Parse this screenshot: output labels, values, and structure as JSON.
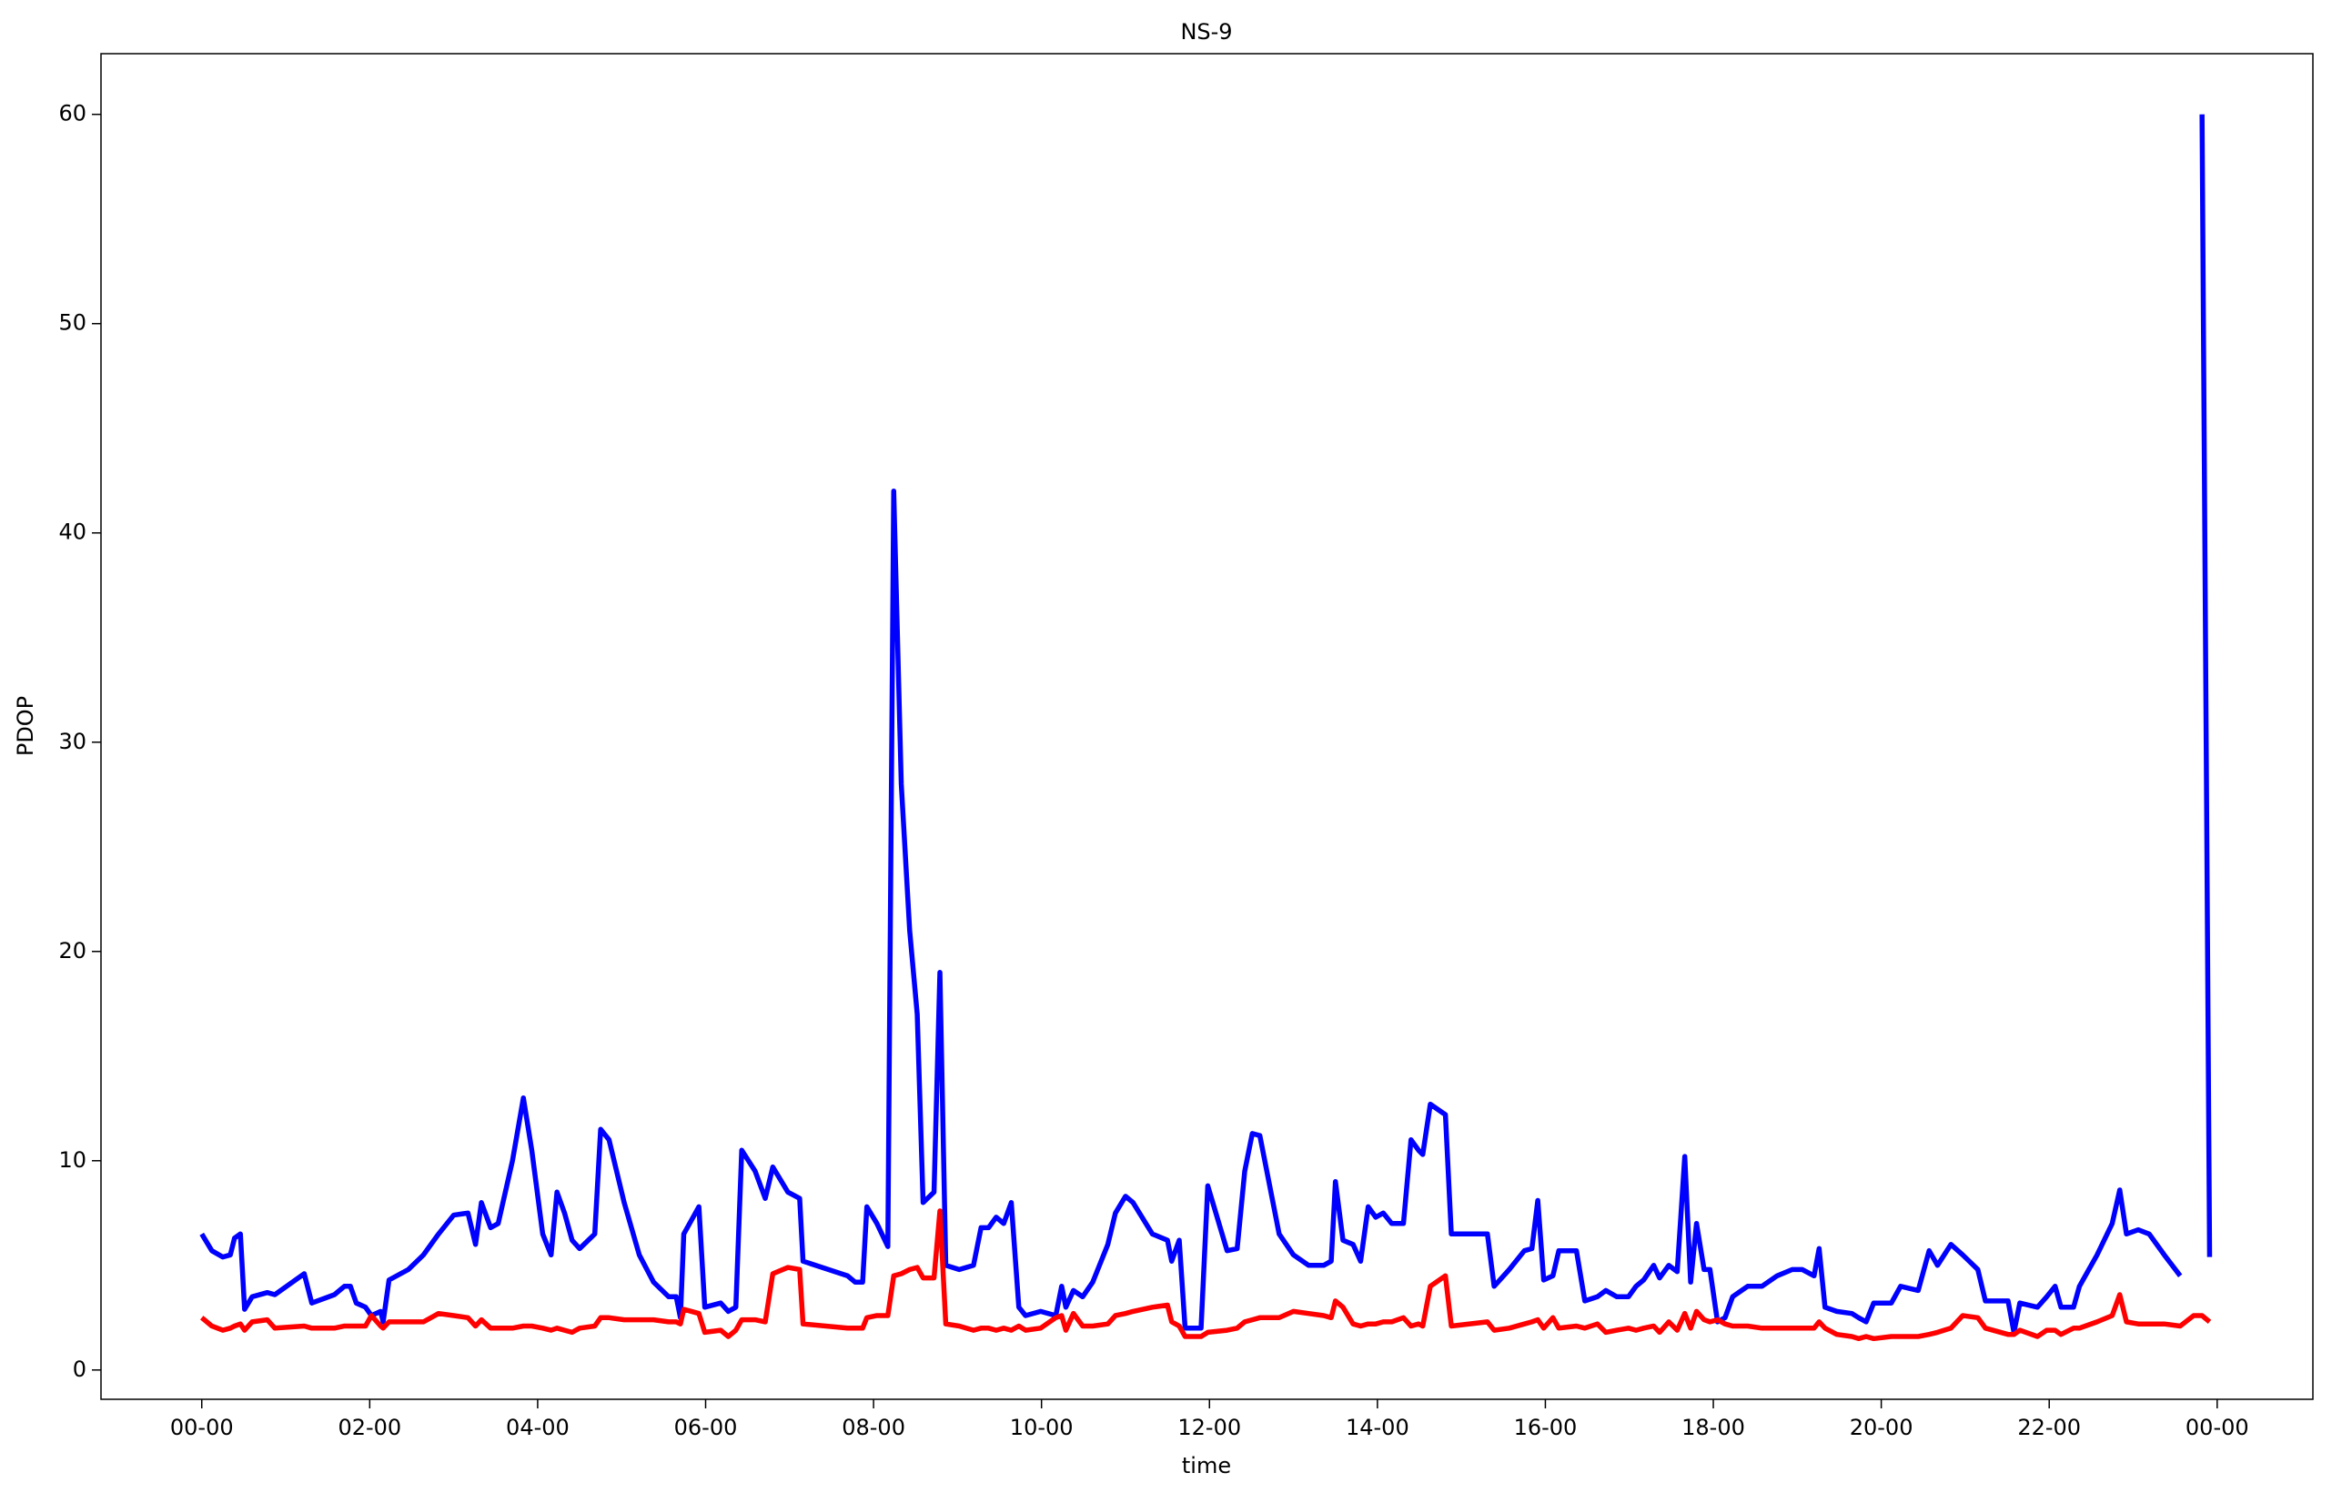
{
  "chart_data": {
    "type": "line",
    "title": "NS-9",
    "x_label": "time",
    "y_label": "PDOP",
    "x": [
      0,
      0.12,
      0.25,
      0.34,
      0.39,
      0.46,
      0.51,
      0.6,
      0.78,
      0.87,
      1.22,
      1.31,
      1.58,
      1.7,
      1.77,
      1.84,
      1.95,
      2.02,
      2.13,
      2.16,
      2.23,
      2.46,
      2.64,
      2.82,
      3.0,
      3.17,
      3.26,
      3.33,
      3.44,
      3.53,
      3.7,
      3.83,
      3.93,
      4.06,
      4.16,
      4.23,
      4.32,
      4.41,
      4.5,
      4.68,
      4.75,
      4.85,
      5.03,
      5.21,
      5.38,
      5.56,
      5.65,
      5.7,
      5.74,
      5.92,
      5.99,
      6.18,
      6.27,
      6.36,
      6.43,
      6.59,
      6.71,
      6.8,
      6.98,
      7.12,
      7.16,
      7.69,
      7.78,
      7.87,
      7.92,
      8.04,
      8.17,
      8.24,
      8.33,
      8.43,
      8.52,
      8.59,
      8.72,
      8.79,
      8.86,
      9.02,
      9.19,
      9.28,
      9.37,
      9.46,
      9.55,
      9.64,
      9.73,
      9.81,
      9.99,
      10.17,
      10.24,
      10.29,
      10.38,
      10.49,
      10.61,
      10.79,
      10.88,
      11.0,
      11.09,
      11.32,
      11.5,
      11.55,
      11.64,
      11.71,
      11.9,
      11.98,
      12.21,
      12.33,
      12.42,
      12.51,
      12.6,
      12.83,
      13.0,
      13.18,
      13.36,
      13.45,
      13.5,
      13.59,
      13.71,
      13.8,
      13.89,
      13.98,
      14.07,
      14.17,
      14.31,
      14.4,
      14.49,
      14.54,
      14.63,
      14.81,
      14.88,
      15.31,
      15.39,
      15.57,
      15.75,
      15.84,
      15.91,
      15.98,
      16.09,
      16.16,
      16.37,
      16.47,
      16.62,
      16.72,
      16.85,
      16.99,
      17.08,
      17.17,
      17.29,
      17.36,
      17.47,
      17.57,
      17.66,
      17.73,
      17.8,
      17.89,
      17.96,
      18.05,
      18.14,
      18.23,
      18.41,
      18.58,
      18.76,
      18.94,
      19.06,
      19.2,
      19.26,
      19.33,
      19.47,
      19.65,
      19.73,
      19.82,
      19.91,
      20.12,
      20.23,
      20.44,
      20.57,
      20.67,
      20.83,
      20.97,
      21.15,
      21.24,
      21.51,
      21.58,
      21.65,
      21.86,
      21.97,
      22.07,
      22.14,
      22.29,
      22.36,
      22.57,
      22.75,
      22.84,
      22.92,
      23.06,
      23.19,
      23.37,
      23.56,
      23.72,
      23.82,
      23.91
    ],
    "series": [
      {
        "color": "#0000ff",
        "values": [
          6.5,
          5.7,
          5.4,
          5.5,
          6.3,
          6.5,
          2.9,
          3.5,
          3.7,
          3.6,
          4.6,
          3.2,
          3.6,
          4.0,
          4.0,
          3.2,
          3.0,
          2.6,
          2.8,
          2.3,
          4.3,
          4.8,
          5.5,
          6.5,
          7.4,
          7.5,
          6.0,
          8.0,
          6.8,
          7.0,
          10,
          13,
          10.5,
          6.5,
          5.5,
          8.5,
          7.5,
          6.2,
          5.8,
          6.5,
          11.5,
          11,
          8,
          5.5,
          4.2,
          3.5,
          3.5,
          2.5,
          6.5,
          7.8,
          3.0,
          3.2,
          2.8,
          3.0,
          10.5,
          9.5,
          8.2,
          9.7,
          8.5,
          8.2,
          5.2,
          4.5,
          4.2,
          4.2,
          7.8,
          7.0,
          5.9,
          42,
          28,
          21,
          17,
          8,
          8.5,
          19,
          5,
          4.8,
          5.0,
          6.8,
          6.8,
          7.3,
          7.0,
          8.0,
          3.0,
          2.6,
          2.8,
          2.6,
          4.0,
          3.0,
          3.8,
          3.5,
          4.2,
          6,
          7.5,
          8.3,
          8.0,
          6.5,
          6.2,
          5.2,
          6.2,
          2.0,
          2.0,
          8.8,
          5.7,
          5.8,
          9.5,
          11.3,
          11.2,
          6.5,
          5.5,
          5.0,
          5.0,
          5.2,
          9.0,
          6.2,
          6.0,
          5.2,
          7.8,
          7.3,
          7.5,
          7.0,
          7.0,
          11,
          10.5,
          10.3,
          12.7,
          12.2,
          6.5,
          6.5,
          4.0,
          4.8,
          5.7,
          5.8,
          8.1,
          4.3,
          4.5,
          5.7,
          5.7,
          3.3,
          3.5,
          3.8,
          3.5,
          3.5,
          4.0,
          4.3,
          5.0,
          4.4,
          5.0,
          4.7,
          10.2,
          4.2,
          7.0,
          4.8,
          4.8,
          2.3,
          2.5,
          3.5,
          4.0,
          4.0,
          4.5,
          4.8,
          4.8,
          4.5,
          5.8,
          3.0,
          2.8,
          2.7,
          2.5,
          2.3,
          3.2,
          3.2,
          4.0,
          3.8,
          5.7,
          5.0,
          6.0,
          5.5,
          4.8,
          3.3,
          3.3,
          1.8,
          3.2,
          3.0,
          3.5,
          4.0,
          3.0,
          3.0,
          4.0,
          5.5,
          7.0,
          8.6,
          6.5,
          6.7,
          6.5,
          5.5,
          4.5,
          null,
          60,
          5.4
        ]
      },
      {
        "color": "#ff0000",
        "values": [
          2.5,
          2.1,
          1.9,
          2.0,
          2.1,
          2.2,
          1.9,
          2.3,
          2.4,
          2.0,
          2.1,
          2.0,
          2.0,
          2.1,
          2.1,
          2.1,
          2.1,
          2.6,
          2.1,
          2.0,
          2.3,
          2.3,
          2.3,
          2.7,
          2.6,
          2.5,
          2.1,
          2.4,
          2.0,
          2.0,
          2.0,
          2.1,
          2.1,
          2.0,
          1.9,
          2.0,
          1.9,
          1.8,
          2.0,
          2.1,
          2.5,
          2.5,
          2.4,
          2.4,
          2.4,
          2.3,
          2.3,
          2.2,
          2.9,
          2.7,
          1.8,
          1.9,
          1.6,
          1.9,
          2.4,
          2.4,
          2.3,
          4.6,
          4.9,
          4.8,
          2.2,
          2.0,
          2.0,
          2.0,
          2.5,
          2.6,
          2.6,
          4.5,
          4.6,
          4.8,
          4.9,
          4.4,
          4.4,
          7.6,
          2.2,
          2.1,
          1.9,
          2.0,
          2.0,
          1.9,
          2.0,
          1.9,
          2.1,
          1.9,
          2.0,
          2.5,
          2.6,
          1.9,
          2.7,
          2.1,
          2.1,
          2.2,
          2.6,
          2.7,
          2.8,
          3.0,
          3.1,
          2.3,
          2.1,
          1.6,
          1.6,
          1.8,
          1.9,
          2.0,
          2.3,
          2.4,
          2.5,
          2.5,
          2.8,
          2.7,
          2.6,
          2.5,
          3.3,
          3.0,
          2.2,
          2.1,
          2.2,
          2.2,
          2.3,
          2.3,
          2.5,
          2.1,
          2.2,
          2.1,
          4.0,
          4.5,
          2.1,
          2.3,
          1.9,
          2.0,
          2.2,
          2.3,
          2.4,
          2.0,
          2.5,
          2.0,
          2.1,
          2.0,
          2.2,
          1.8,
          1.9,
          2.0,
          1.9,
          2.0,
          2.1,
          1.8,
          2.3,
          1.9,
          2.7,
          2.0,
          2.8,
          2.4,
          2.3,
          2.4,
          2.2,
          2.1,
          2.1,
          2.0,
          2.0,
          2.0,
          2.0,
          2.0,
          2.3,
          2.0,
          1.7,
          1.6,
          1.5,
          1.6,
          1.5,
          1.6,
          1.6,
          1.6,
          1.7,
          1.8,
          2.0,
          2.6,
          2.5,
          2.0,
          1.7,
          1.7,
          1.9,
          1.6,
          1.9,
          1.9,
          1.7,
          2.0,
          2.0,
          2.3,
          2.6,
          3.6,
          2.3,
          2.2,
          2.2,
          2.2,
          2.1,
          2.6,
          2.6,
          2.3
        ]
      }
    ],
    "xlim": [
      -1.2,
      25.14
    ],
    "xticks": [
      {
        "value": 0,
        "label": "00-00"
      },
      {
        "value": 2,
        "label": "02-00"
      },
      {
        "value": 4,
        "label": "04-00"
      },
      {
        "value": 6,
        "label": "06-00"
      },
      {
        "value": 8,
        "label": "08-00"
      },
      {
        "value": 10,
        "label": "10-00"
      },
      {
        "value": 12,
        "label": "12-00"
      },
      {
        "value": 14,
        "label": "14-00"
      },
      {
        "value": 16,
        "label": "16-00"
      },
      {
        "value": 18,
        "label": "18-00"
      },
      {
        "value": 20,
        "label": "20-00"
      },
      {
        "value": 22,
        "label": "22-00"
      },
      {
        "value": 24,
        "label": "00-00"
      }
    ],
    "ylim": [
      -1.4,
      62.9
    ],
    "yticks": [
      0,
      10,
      20,
      30,
      40,
      50,
      60
    ],
    "grid": false
  }
}
